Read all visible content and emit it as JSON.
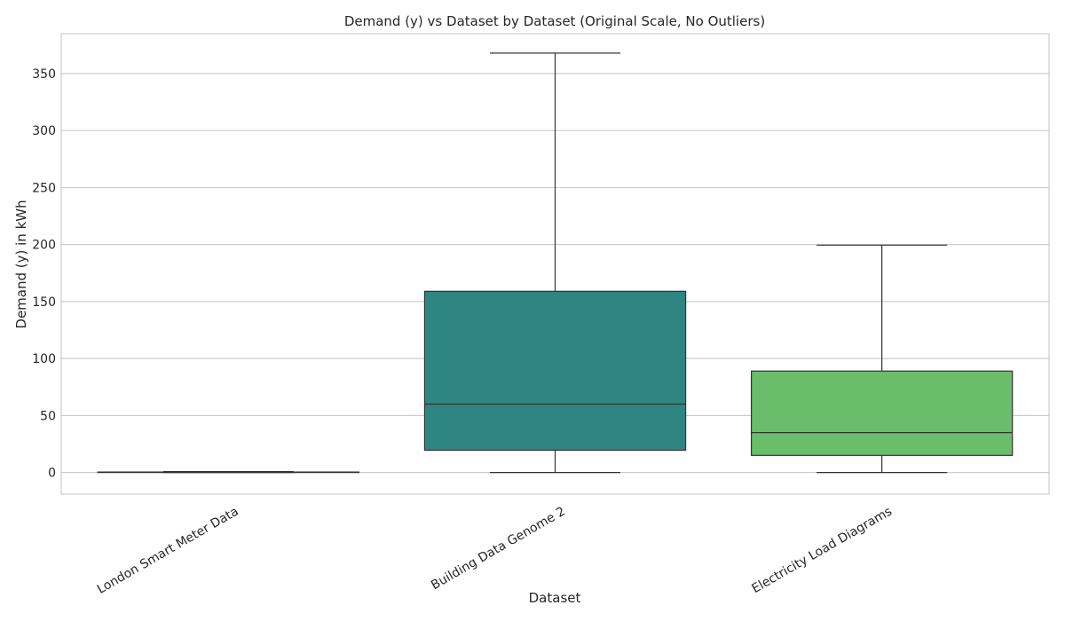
{
  "chart_data": {
    "type": "box",
    "title": "Demand (y) vs Dataset by Dataset (Original Scale, No Outliers)",
    "xlabel": "Dataset",
    "ylabel": "Demand (y) in kWh",
    "ylim": [
      -19,
      385
    ],
    "yticks": [
      0,
      50,
      100,
      150,
      200,
      250,
      300,
      350
    ],
    "grid": true,
    "categories": [
      "London Smart Meter Data",
      "Building Data Genome 2",
      "Electricity Load Diagrams"
    ],
    "boxes": [
      {
        "category": "London Smart Meter Data",
        "whisker_low": 0,
        "q1": 0,
        "median": 0.2,
        "q3": 0.4,
        "whisker_high": 0.8,
        "color": "#3b528b"
      },
      {
        "category": "Building Data Genome 2",
        "whisker_low": 0,
        "q1": 19.5,
        "median": 60,
        "q3": 159,
        "whisker_high": 368,
        "color": "#2e8581"
      },
      {
        "category": "Electricity Load Diagrams",
        "whisker_low": 0,
        "q1": 15,
        "median": 35,
        "q3": 89,
        "whisker_high": 199.5,
        "color": "#6abd6a"
      }
    ]
  }
}
